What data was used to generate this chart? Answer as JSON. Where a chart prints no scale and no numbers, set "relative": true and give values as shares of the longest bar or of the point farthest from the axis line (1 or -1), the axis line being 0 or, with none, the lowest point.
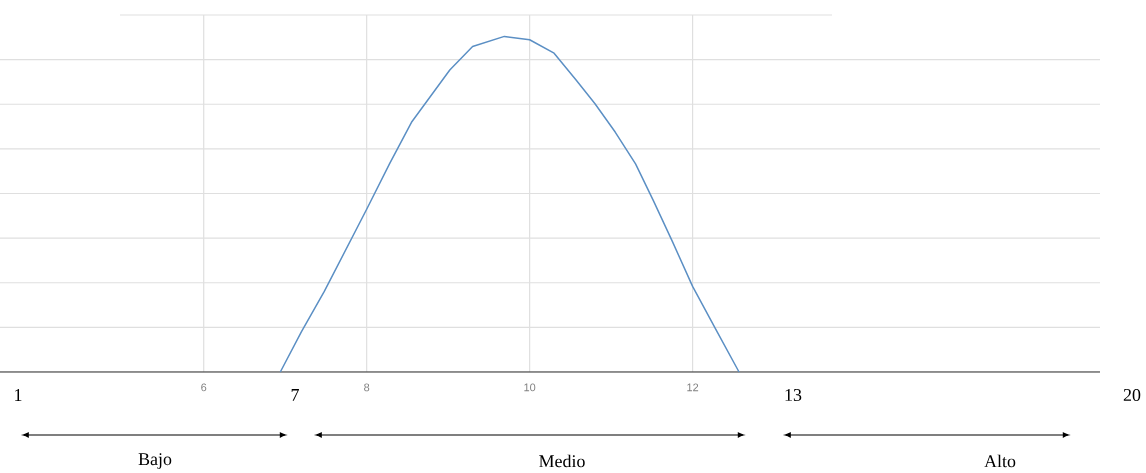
{
  "chart_data": {
    "type": "line",
    "relative": true,
    "x": [
      6.94,
      7.2,
      7.48,
      8.0,
      8.28,
      8.55,
      9.02,
      9.3,
      9.69,
      10.0,
      10.3,
      10.57,
      10.8,
      11.05,
      11.3,
      11.52,
      11.75,
      12.0,
      12.3,
      12.57
    ],
    "values": [
      0,
      0.12,
      0.24,
      0.485,
      0.62,
      0.744,
      0.9,
      0.97,
      1,
      0.99,
      0.95,
      0.87,
      0.8,
      0.715,
      0.62,
      0.51,
      0.39,
      0.255,
      0.12,
      0
    ],
    "color": "#5b8fc4",
    "xlim": [
      3.5,
      17
    ],
    "xticks": [
      6,
      8,
      10,
      12
    ],
    "grid": true,
    "marker": "none",
    "line_style": "solid",
    "annotations": [
      "1",
      "7",
      "13",
      "20",
      "Bajo",
      "Medio",
      "Alto"
    ]
  }
}
